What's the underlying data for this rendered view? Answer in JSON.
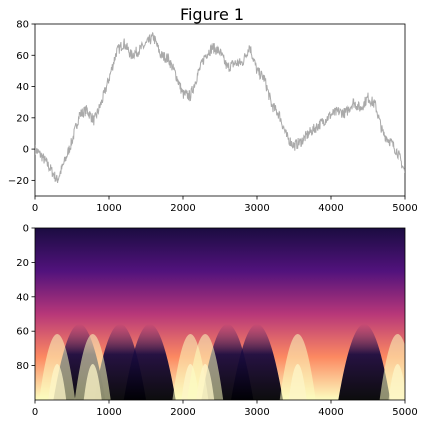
{
  "window": {
    "title": "Figure 1"
  },
  "chart_data": [
    {
      "type": "line",
      "title": "",
      "xlabel": "",
      "ylabel": "",
      "xlim": [
        0,
        5000
      ],
      "ylim": [
        -30,
        80
      ],
      "xticks": [
        "0",
        "1000",
        "2000",
        "3000",
        "4000",
        "5000"
      ],
      "yticks": [
        "−20",
        "0",
        "20",
        "40",
        "60",
        "80"
      ],
      "grid": false,
      "series": [
        {
          "color": "#aaaaaa",
          "x": [
            0,
            100,
            200,
            300,
            400,
            500,
            600,
            700,
            800,
            900,
            1000,
            1100,
            1200,
            1300,
            1400,
            1500,
            1600,
            1700,
            1800,
            1900,
            2000,
            2100,
            2200,
            2300,
            2400,
            2500,
            2600,
            2700,
            2800,
            2900,
            3000,
            3100,
            3200,
            3300,
            3400,
            3500,
            3600,
            3700,
            3800,
            3900,
            4000,
            4100,
            4200,
            4300,
            4400,
            4500,
            4600,
            4700,
            4800,
            4900,
            5000
          ],
          "y": [
            0,
            -5,
            -12,
            -20,
            -8,
            5,
            22,
            25,
            18,
            30,
            45,
            62,
            68,
            60,
            63,
            67,
            72,
            60,
            58,
            48,
            35,
            34,
            48,
            60,
            65,
            62,
            52,
            55,
            55,
            66,
            50,
            45,
            28,
            22,
            8,
            2,
            5,
            10,
            14,
            18,
            22,
            24,
            23,
            30,
            26,
            33,
            28,
            10,
            5,
            -2,
            -15
          ]
        }
      ]
    },
    {
      "type": "heatmap",
      "title": "",
      "xlabel": "",
      "ylabel": "",
      "colormap": "magma",
      "xlim": [
        0,
        5000
      ],
      "ylim": [
        100,
        0
      ],
      "xticks": [
        "0",
        "1000",
        "2000",
        "3000",
        "4000",
        "5000"
      ],
      "yticks": [
        "0",
        "20",
        "40",
        "60",
        "80"
      ],
      "bright_columns_x": [
        300,
        780,
        2100,
        2300,
        3550,
        4900
      ],
      "dark_columns_x": [
        600,
        1150,
        1550,
        2600,
        3000,
        4450
      ]
    }
  ]
}
